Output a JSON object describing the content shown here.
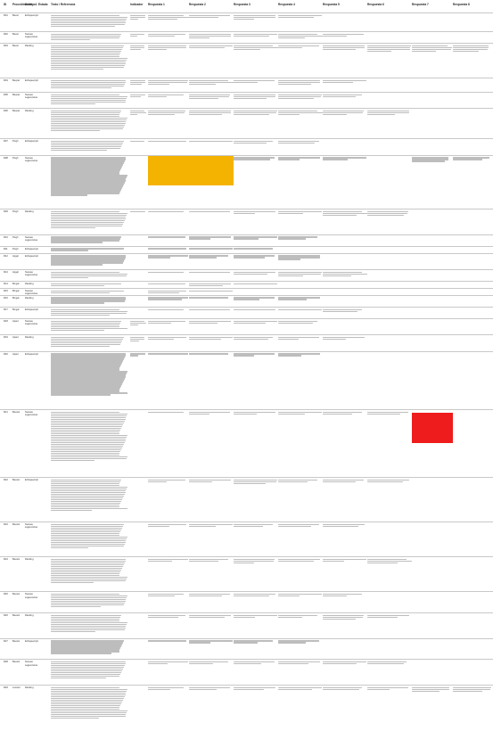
{
  "header": {
    "id": "ID",
    "project": "Procedimiento",
    "type": "Subtipo1",
    "status": "Estado",
    "text": "Texto / Referencia",
    "indicator": "Indicador",
    "answers": [
      "Respuesta 1",
      "Respuesta 2",
      "Respuesta 3",
      "Respuesta 4",
      "Respuesta 5",
      "Respuesta 6",
      "Respuesta 7",
      "Respuesta 8"
    ]
  },
  "rows": [
    {
      "id": "R01",
      "project": "Bexal",
      "type": "Enfoque/opinion",
      "text_lines": 7,
      "ind_lines": 3,
      "answers": [
        3,
        2,
        3,
        2,
        0,
        0,
        0,
        0
      ]
    },
    {
      "id": "R02",
      "project": "Bexal",
      "type": "Nuevas sugerencias",
      "text_lines": 4,
      "ind_lines": 2,
      "answers": [
        2,
        3,
        2,
        3,
        2,
        0,
        0,
        0
      ]
    },
    {
      "id": "R03",
      "project": "Bexal",
      "type": "Ranking",
      "text_lines": 14,
      "ind_lines": 3,
      "answers": [
        3,
        2,
        3,
        2,
        3,
        4,
        4,
        4
      ]
    },
    {
      "id": "R04",
      "project": "Bexpal",
      "type": "Enfoque/opinion",
      "text_lines": 5,
      "ind_lines": 3,
      "answers": [
        3,
        3,
        2,
        3,
        2,
        0,
        0,
        0
      ]
    },
    {
      "id": "R05",
      "project": "Bexpal",
      "type": "Nuevas sugerencias",
      "text_lines": 6,
      "ind_lines": 2,
      "answers": [
        2,
        3,
        3,
        3,
        2,
        0,
        0,
        0
      ]
    },
    {
      "id": "R06",
      "project": "Bexpal",
      "type": "Ranking",
      "text_lines": 12,
      "ind_lines": 3,
      "answers": [
        3,
        3,
        3,
        3,
        3,
        3,
        0,
        0
      ]
    },
    {
      "id": "R07",
      "project": "Pivgh",
      "type": "Enfoque/opinion",
      "text_lines": 6,
      "ind_lines": 1,
      "answers": [
        1,
        1,
        2,
        2,
        0,
        0,
        0,
        0
      ]
    },
    {
      "id": "R08",
      "project": "Pivgh",
      "type": "Nuevas sugerencias",
      "text_lines": 22,
      "ind_lines": 0,
      "answers": [
        2,
        2,
        2,
        2,
        2,
        0,
        3,
        2
      ]
    },
    {
      "id": "R09",
      "project": "Pivgh",
      "type": "Ranking",
      "text_lines": 10,
      "ind_lines": 1,
      "answers": [
        1,
        1,
        2,
        2,
        3,
        3,
        0,
        0
      ]
    },
    {
      "id": "R10",
      "project": "Pivgh",
      "type": "Nuevas sugerencias",
      "text_lines": 4,
      "ind_lines": 0,
      "answers": [
        1,
        2,
        2,
        2,
        0,
        0,
        0,
        0
      ]
    },
    {
      "id": "R11",
      "project": "Pivgh",
      "type": "Enfoque/opinion",
      "text_lines": 2,
      "ind_lines": 0,
      "answers": [
        1,
        1,
        1,
        0,
        0,
        0,
        0,
        0
      ]
    },
    {
      "id": "R12",
      "project": "Apgal",
      "type": "Enfoque/opinion",
      "text_lines": 6,
      "ind_lines": 0,
      "answers": [
        2,
        2,
        2,
        3,
        0,
        0,
        0,
        0
      ]
    },
    {
      "id": "R13",
      "project": "Apgal",
      "type": "Nuevas sugerencias",
      "text_lines": 4,
      "ind_lines": 0,
      "answers": [
        1,
        1,
        2,
        3,
        3,
        0,
        0,
        0
      ]
    },
    {
      "id": "R14",
      "project": "Bmgal",
      "type": "Ranking",
      "text_lines": 2,
      "ind_lines": 0,
      "answers": [
        1,
        2,
        1,
        0,
        0,
        0,
        0,
        0
      ]
    },
    {
      "id": "R15",
      "project": "Bmgal",
      "type": "Nuevas sugerencias",
      "text_lines": 2,
      "ind_lines": 0,
      "answers": [
        2,
        1,
        0,
        0,
        0,
        0,
        0,
        0
      ]
    },
    {
      "id": "R16",
      "project": "Bmgal",
      "type": "Ranking",
      "text_lines": 4,
      "ind_lines": 0,
      "answers": [
        2,
        1,
        2,
        2,
        0,
        0,
        0,
        0
      ]
    },
    {
      "id": "R17",
      "project": "Bmgal",
      "type": "Enfoque/opinion",
      "text_lines": 4,
      "ind_lines": 0,
      "answers": [
        1,
        1,
        1,
        1,
        2,
        0,
        0,
        0
      ]
    },
    {
      "id": "R18",
      "project": "Apant",
      "type": "Nuevas sugerencias",
      "text_lines": 6,
      "ind_lines": 3,
      "answers": [
        2,
        2,
        2,
        2,
        0,
        0,
        0,
        0
      ]
    },
    {
      "id": "R19",
      "project": "Apant",
      "type": "Ranking",
      "text_lines": 6,
      "ind_lines": 3,
      "answers": [
        2,
        2,
        2,
        2,
        2,
        0,
        0,
        0
      ]
    },
    {
      "id": "R20",
      "project": "Apant",
      "type": "Enfoque/opinion",
      "text_lines": 24,
      "ind_lines": 2,
      "answers": [
        1,
        1,
        2,
        2,
        0,
        0,
        0,
        0
      ]
    },
    {
      "id": "R21",
      "project": "Bexant",
      "type": "Nuevas sugerencias",
      "text_lines": 28,
      "ind_lines": 0,
      "answers": [
        1,
        2,
        2,
        2,
        2,
        2,
        0,
        0
      ]
    },
    {
      "id": "R22",
      "project": "Bexant",
      "type": "Enfoque/opinion",
      "text_lines": 18,
      "ind_lines": 0,
      "answers": [
        2,
        2,
        3,
        2,
        2,
        2,
        0,
        0
      ]
    },
    {
      "id": "R23",
      "project": "Bexant",
      "type": "Nuevas sugerencias",
      "text_lines": 14,
      "ind_lines": 0,
      "answers": [
        2,
        2,
        2,
        2,
        2,
        0,
        0,
        0
      ]
    },
    {
      "id": "R24",
      "project": "Bexant",
      "type": "Ranking",
      "text_lines": 14,
      "ind_lines": 0,
      "answers": [
        2,
        2,
        3,
        2,
        2,
        3,
        0,
        0
      ]
    },
    {
      "id": "R25",
      "project": "Bexant",
      "type": "Nuevas sugerencias",
      "text_lines": 8,
      "ind_lines": 0,
      "answers": [
        2,
        2,
        2,
        2,
        2,
        0,
        0,
        0
      ]
    },
    {
      "id": "R26",
      "project": "Bexant",
      "type": "Ranking",
      "text_lines": 10,
      "ind_lines": 0,
      "answers": [
        2,
        2,
        2,
        2,
        3,
        2,
        0,
        0
      ]
    },
    {
      "id": "R27",
      "project": "Bexant",
      "type": "Enfoque/opinion",
      "text_lines": 8,
      "ind_lines": 0,
      "answers": [
        1,
        2,
        2,
        2,
        0,
        0,
        0,
        0
      ]
    },
    {
      "id": "R28",
      "project": "Bexant",
      "type": "Nuevas sugerencias",
      "text_lines": 10,
      "ind_lines": 0,
      "answers": [
        2,
        2,
        2,
        2,
        2,
        2,
        0,
        0
      ]
    },
    {
      "id": "R29",
      "project": "Lemant",
      "type": "Ranking",
      "text_lines": 18,
      "ind_lines": 0,
      "answers": [
        2,
        2,
        2,
        2,
        2,
        2,
        3,
        3
      ]
    }
  ],
  "highlights": {
    "orange": "#f5b301",
    "red": "#ee1c1c"
  }
}
